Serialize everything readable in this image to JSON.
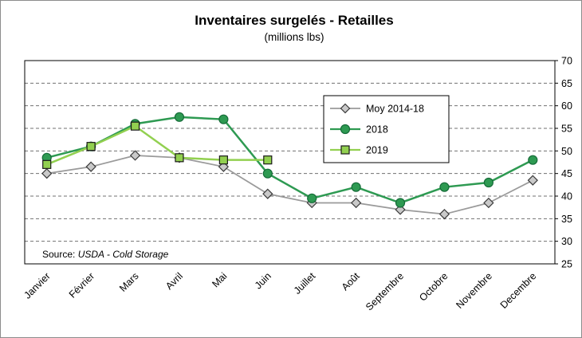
{
  "title": "Inventaires surgelés - Retailles",
  "subtitle": "(millions lbs)",
  "source": {
    "prefix": "Source: ",
    "text": "USDA - Cold Storage"
  },
  "chart_data": {
    "type": "line",
    "title": "Inventaires surgelés - Retailles",
    "subtitle": "(millions lbs)",
    "categories": [
      "Janvier",
      "Février",
      "Mars",
      "Avril",
      "Mai",
      "Juin",
      "Juillet",
      "Août",
      "Septembre",
      "Octobre",
      "Novembre",
      "Decembre"
    ],
    "series": [
      {
        "name": "Moy 2014-18",
        "marker": "diamond",
        "color": "#9a9a9a",
        "marker_fill": "#c9c9c9",
        "marker_stroke": "#3a3a3a",
        "values": [
          45,
          46.5,
          49,
          48.5,
          46.5,
          40.5,
          38.5,
          38.5,
          37,
          36,
          38.5,
          43.5
        ]
      },
      {
        "name": "2018",
        "marker": "circle",
        "color": "#2e9a52",
        "marker_fill": "#2e9a52",
        "marker_stroke": "#156b38",
        "values": [
          48.5,
          51,
          56,
          57.5,
          57,
          45,
          39.5,
          42,
          38.5,
          42,
          43,
          48
        ]
      },
      {
        "name": "2019",
        "marker": "square",
        "color": "#92d050",
        "marker_fill": "#92d050",
        "marker_stroke": "#1a1a1a",
        "values": [
          47,
          51,
          55.5,
          48.5,
          48,
          48
        ]
      }
    ],
    "xlabel": "",
    "ylabel": "",
    "ylim": [
      25,
      70
    ],
    "ytick_step": 5,
    "grid": "horizontal-dashed",
    "legend_position": "inside-top-center"
  }
}
